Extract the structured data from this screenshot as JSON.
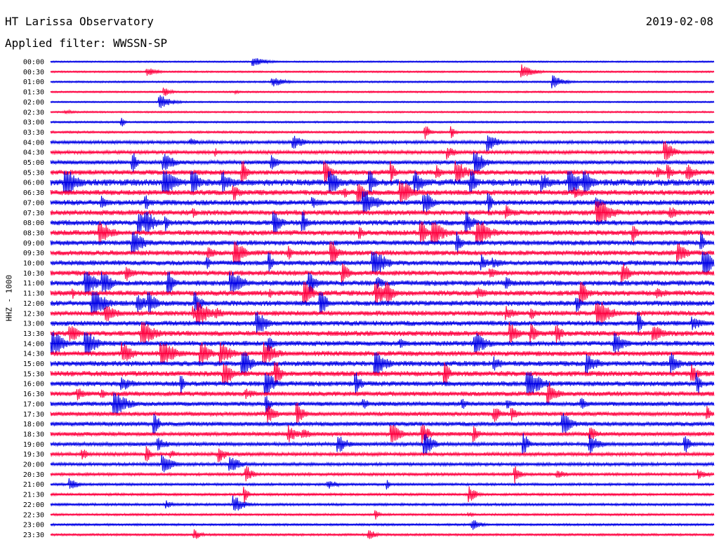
{
  "header": {
    "title": "HT Larissa Observatory",
    "date": "2019-02-08",
    "filter": "Applied filter: WWSSN-SP"
  },
  "chart_data": {
    "type": "line",
    "title": "HT Larissa Observatory",
    "subtitle": "Applied filter: WWSSN-SP",
    "date": "2019-02-08",
    "ylabel": "HHZ - 1000",
    "xlabel": "",
    "y_ticks": [
      "00:00",
      "00:30",
      "01:00",
      "01:30",
      "02:00",
      "02:30",
      "03:00",
      "03:30",
      "04:00",
      "04:30",
      "05:00",
      "05:30",
      "06:00",
      "06:30",
      "07:00",
      "07:30",
      "08:00",
      "08:30",
      "09:00",
      "09:30",
      "10:00",
      "10:30",
      "11:00",
      "11:30",
      "12:00",
      "12:30",
      "13:00",
      "13:30",
      "14:00",
      "14:30",
      "15:00",
      "15:30",
      "16:00",
      "16:30",
      "17:00",
      "17:30",
      "18:00",
      "18:30",
      "19:00",
      "19:30",
      "20:00",
      "20:30",
      "21:00",
      "21:30",
      "22:00",
      "22:30",
      "23:00",
      "23:30"
    ],
    "x_range_minutes": [
      0,
      30
    ],
    "trace_colors": [
      "#0000e6",
      "#ff0040"
    ],
    "trace_amplitude_level": [
      0.05,
      0.06,
      0.07,
      0.06,
      0.05,
      0.06,
      0.07,
      0.1,
      0.18,
      0.2,
      0.25,
      0.32,
      0.45,
      0.35,
      0.35,
      0.35,
      0.35,
      0.35,
      0.33,
      0.33,
      0.33,
      0.33,
      0.35,
      0.35,
      0.35,
      0.33,
      0.33,
      0.35,
      0.33,
      0.33,
      0.35,
      0.35,
      0.33,
      0.3,
      0.28,
      0.27,
      0.28,
      0.25,
      0.22,
      0.2,
      0.18,
      0.15,
      0.12,
      0.12,
      0.12,
      0.1,
      0.1,
      0.1
    ],
    "grid": false,
    "legend": "none"
  }
}
